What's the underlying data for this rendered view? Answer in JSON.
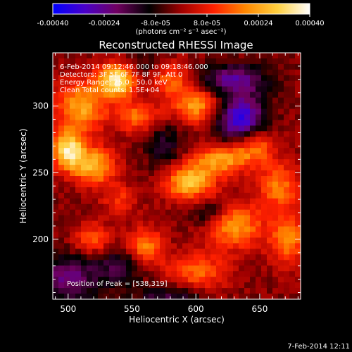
{
  "colorbar": {
    "tick_labels": [
      "-0.00040",
      "-0.00024",
      "-8.0e-05",
      "8.0e-05",
      "0.00024",
      "0.00040"
    ],
    "tick_values": [
      -0.0004,
      -0.00024,
      -8e-05,
      8e-05,
      0.00024,
      0.0004
    ],
    "range": [
      -0.0004,
      0.0004
    ],
    "unit_label": "(photons cm⁻² s⁻¹ asec⁻²)",
    "colors": [
      "#0000ff",
      "#4a00c8",
      "#700060",
      "#000000",
      "#a00000",
      "#ff2000",
      "#ff8800",
      "#ffd040",
      "#ffffff"
    ]
  },
  "chart_data": {
    "type": "heatmap",
    "title": "Reconstructed RHESSI Image",
    "xlabel": "Heliocentric X (arcsec)",
    "ylabel": "Heliocentric Y (arcsec)",
    "xlim": [
      488,
      682
    ],
    "ylim": [
      155,
      340
    ],
    "x_ticks": [
      500,
      550,
      600,
      650
    ],
    "y_ticks": [
      200,
      250,
      300
    ],
    "annotations": [
      "6-Feb-2014 09:12:46.000 to 09:18:46.000",
      "Detectors: 3F 5F 6F 7F 8F 9F, Att 0",
      "Energy Range: 25.0 - 50.0 keV",
      "Clean    Total counts: 1.5E+04"
    ],
    "peak_label": "Position of Peak = [538,319]",
    "peak": [
      538,
      319
    ],
    "blobs": [
      {
        "x": 538,
        "y": 319,
        "amp": 0.00038,
        "sx": 10,
        "sy": 9
      },
      {
        "x": 510,
        "y": 300,
        "amp": 0.00026,
        "sx": 14,
        "sy": 14
      },
      {
        "x": 500,
        "y": 267,
        "amp": 0.00034,
        "sx": 9,
        "sy": 10
      },
      {
        "x": 520,
        "y": 255,
        "amp": 0.00028,
        "sx": 12,
        "sy": 10
      },
      {
        "x": 555,
        "y": 292,
        "amp": 0.0002,
        "sx": 12,
        "sy": 8
      },
      {
        "x": 580,
        "y": 320,
        "amp": 0.00018,
        "sx": 12,
        "sy": 9
      },
      {
        "x": 600,
        "y": 300,
        "amp": 0.00024,
        "sx": 14,
        "sy": 9
      },
      {
        "x": 595,
        "y": 243,
        "amp": 0.0003,
        "sx": 14,
        "sy": 10
      },
      {
        "x": 620,
        "y": 260,
        "amp": 0.00024,
        "sx": 14,
        "sy": 8
      },
      {
        "x": 645,
        "y": 270,
        "amp": 0.00022,
        "sx": 12,
        "sy": 10
      },
      {
        "x": 665,
        "y": 240,
        "amp": 0.0002,
        "sx": 12,
        "sy": 12
      },
      {
        "x": 630,
        "y": 210,
        "amp": 0.00024,
        "sx": 16,
        "sy": 12
      },
      {
        "x": 672,
        "y": 200,
        "amp": 0.00022,
        "sx": 10,
        "sy": 14
      },
      {
        "x": 560,
        "y": 195,
        "amp": 0.00022,
        "sx": 10,
        "sy": 10
      },
      {
        "x": 520,
        "y": 200,
        "amp": 0.00018,
        "sx": 10,
        "sy": 8
      },
      {
        "x": 600,
        "y": 175,
        "amp": 0.00018,
        "sx": 18,
        "sy": 10
      },
      {
        "x": 540,
        "y": 230,
        "amp": 0.00012,
        "sx": 10,
        "sy": 8
      },
      {
        "x": 635,
        "y": 290,
        "amp": -0.00034,
        "sx": 13,
        "sy": 13
      },
      {
        "x": 630,
        "y": 320,
        "amp": -0.00022,
        "sx": 18,
        "sy": 8
      },
      {
        "x": 500,
        "y": 170,
        "amp": -0.0002,
        "sx": 16,
        "sy": 12
      },
      {
        "x": 540,
        "y": 180,
        "amp": -0.00014,
        "sx": 14,
        "sy": 10
      },
      {
        "x": 610,
        "y": 220,
        "amp": -0.00014,
        "sx": 10,
        "sy": 8
      },
      {
        "x": 575,
        "y": 270,
        "amp": -0.00012,
        "sx": 10,
        "sy": 14
      },
      {
        "x": 580,
        "y": 155,
        "amp": -0.00016,
        "sx": 18,
        "sy": 8
      },
      {
        "x": 560,
        "y": 330,
        "amp": -8e-05,
        "sx": 10,
        "sy": 8
      }
    ]
  },
  "footer": {
    "timestamp": "7-Feb-2014 12:11"
  }
}
